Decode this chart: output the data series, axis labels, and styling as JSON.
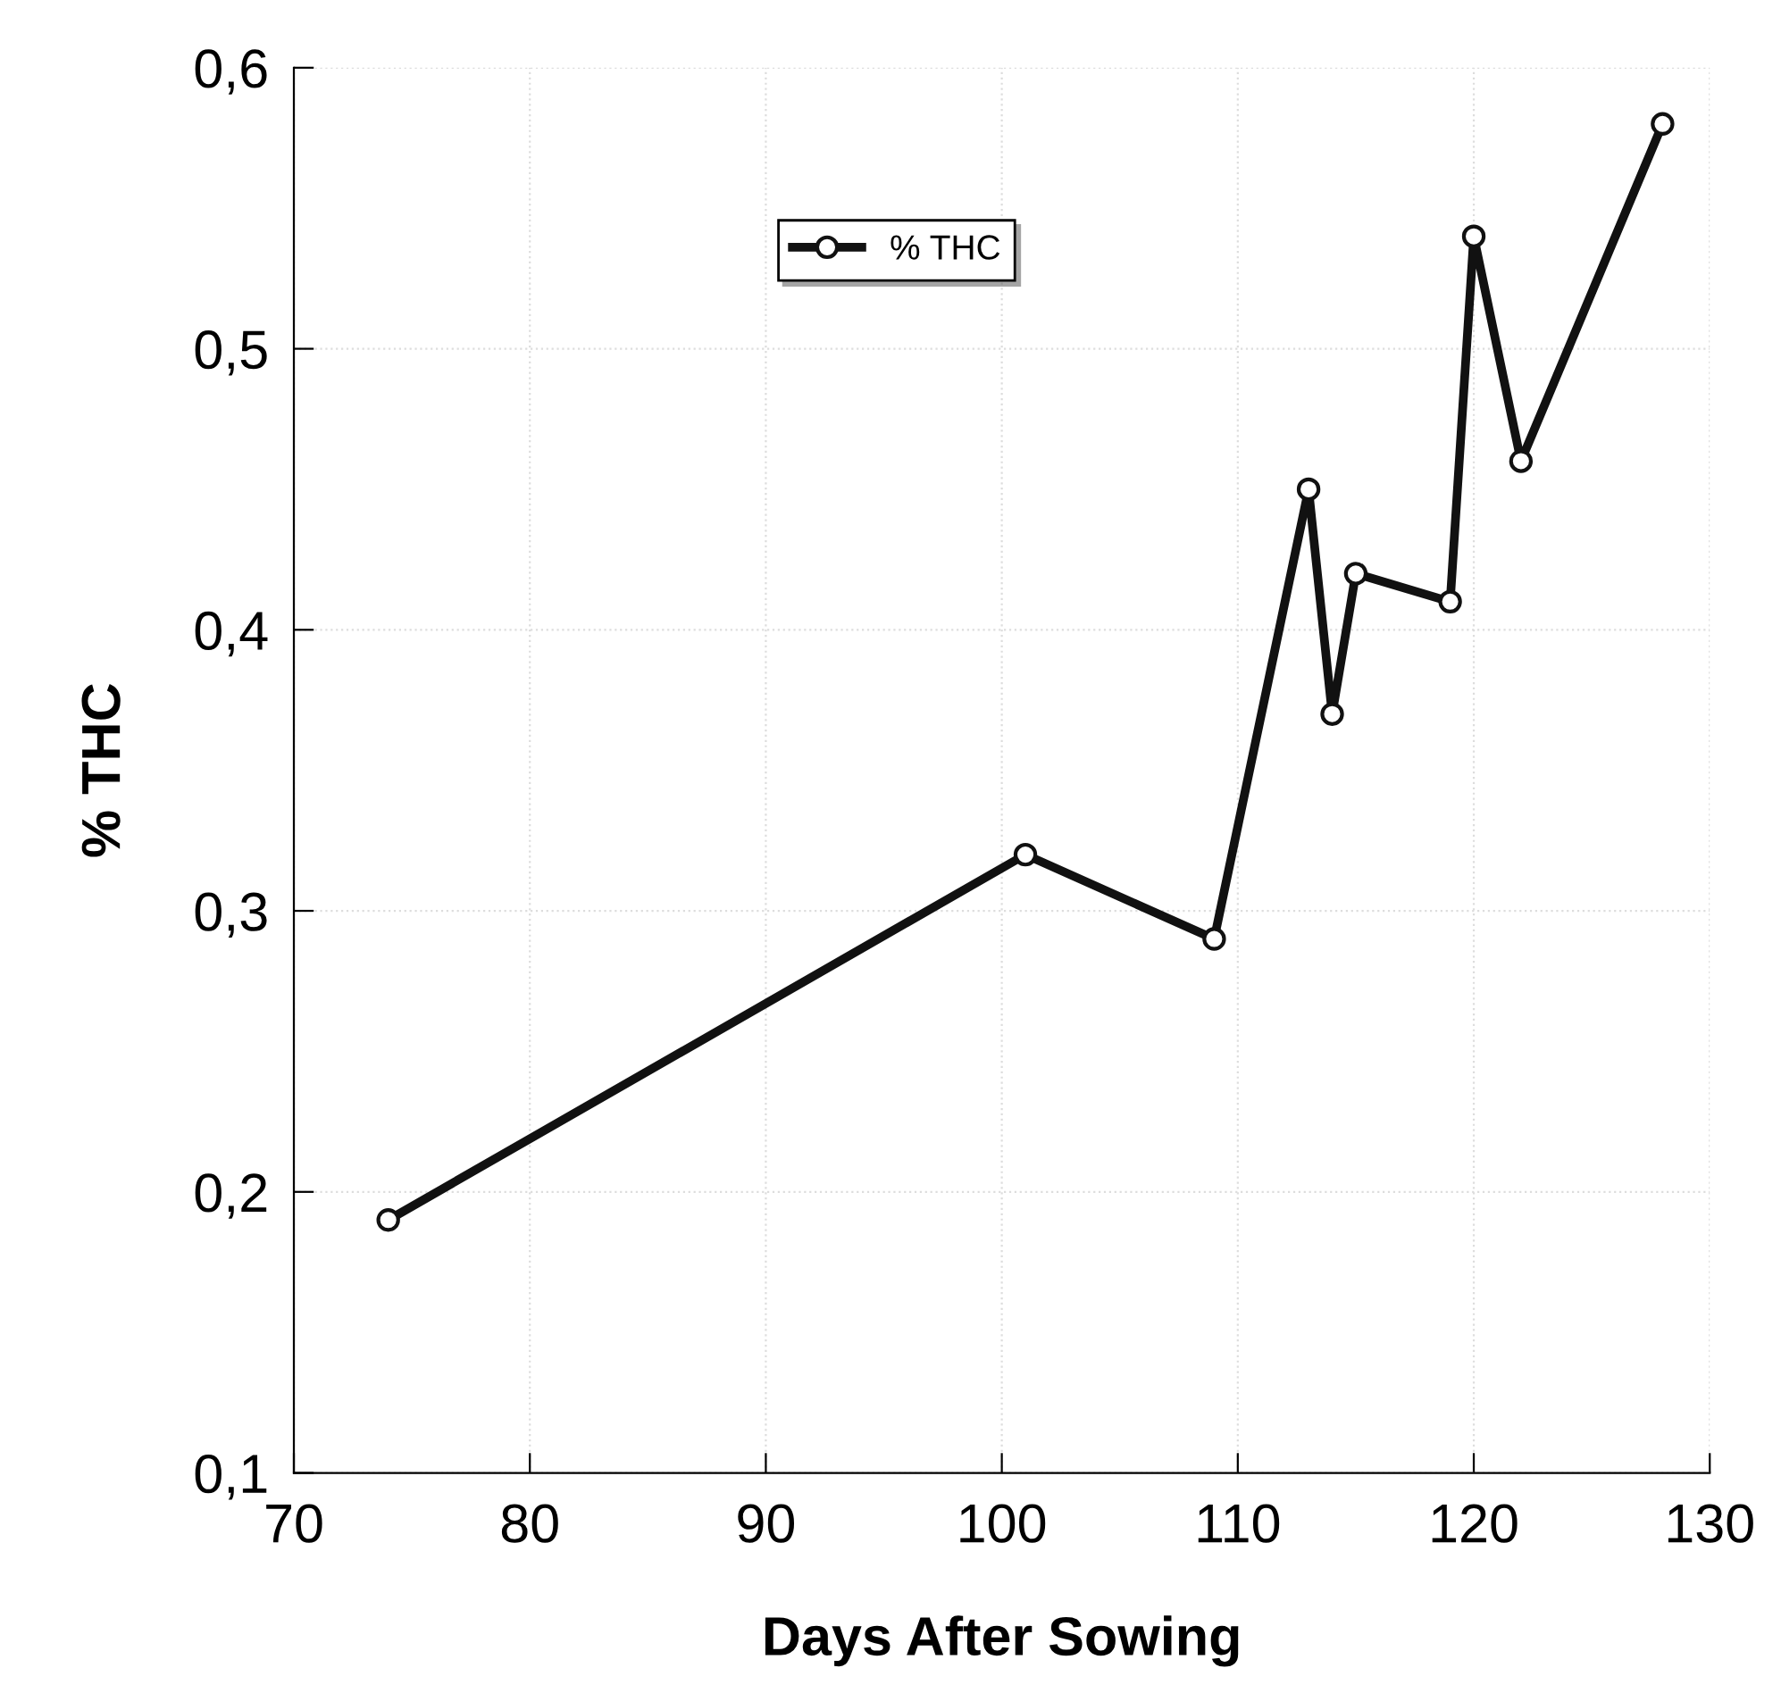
{
  "chart_data": {
    "type": "line",
    "xlabel": "Days After Sowing",
    "ylabel": "% THC",
    "x": [
      74,
      101,
      109,
      113,
      114,
      115,
      119,
      120,
      122,
      128
    ],
    "series": [
      {
        "name": "% THC",
        "color": "#111111",
        "values": [
          0.19,
          0.32,
          0.29,
          0.45,
          0.37,
          0.42,
          0.41,
          0.54,
          0.46,
          0.58
        ]
      }
    ],
    "xlim": [
      70,
      130
    ],
    "xticks": [
      70,
      80,
      90,
      100,
      110,
      120,
      130
    ],
    "ylim": [
      0.1,
      0.6
    ],
    "yticks": [
      {
        "value": 0.1,
        "label": "0,1"
      },
      {
        "value": 0.2,
        "label": "0,2"
      },
      {
        "value": 0.3,
        "label": "0,3"
      },
      {
        "value": 0.4,
        "label": "0,4"
      },
      {
        "value": 0.5,
        "label": "0,5"
      },
      {
        "value": 0.6,
        "label": "0,6"
      }
    ],
    "grid": true,
    "legend": "top",
    "marker": "circle",
    "line_style": "solid"
  }
}
